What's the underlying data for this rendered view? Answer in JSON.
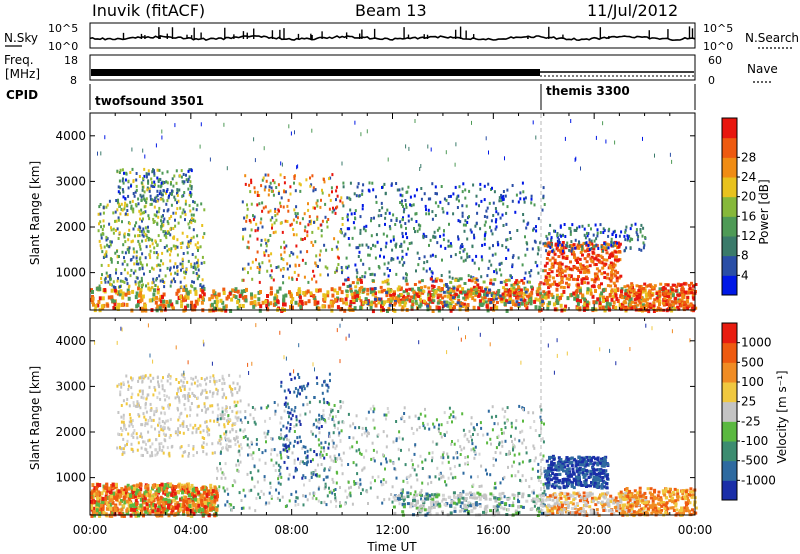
{
  "header": {
    "station": "Inuvik (fitACF)",
    "beam": "Beam 13",
    "date": "11/Jul/2012"
  },
  "nsky_panel": {
    "label": "N.Sky",
    "right_label": "N.Search",
    "yticks": [
      "10^5",
      "10^0"
    ],
    "right_yticks": [
      "10^5",
      "10^0"
    ]
  },
  "freq_panel": {
    "label_line1": "Freq.",
    "label_line2": "[MHz]",
    "yticks": [
      "18",
      "8"
    ],
    "right_label": "Nave",
    "right_yticks": [
      "60",
      "0"
    ]
  },
  "cpid_panel": {
    "label": "CPID",
    "modes": [
      {
        "name": "twofsound 3501",
        "start_hour": 0
      },
      {
        "name": "themis 3300",
        "start_hour": 18
      }
    ]
  },
  "chart_data": [
    {
      "type": "heatmap",
      "ylabel": "Slant Range [km]",
      "y_ticks": [
        "1000",
        "2000",
        "3000",
        "4000"
      ],
      "ylim": [
        180,
        4500
      ],
      "xlim": [
        0,
        24
      ],
      "x_ticks": [
        "00:00",
        "04:00",
        "08:00",
        "12:00",
        "16:00",
        "20:00",
        "00:00"
      ],
      "colorbar": {
        "label": "Power [dB]",
        "ticks": [
          "4",
          "8",
          "12",
          "16",
          "20",
          "24",
          "28"
        ],
        "colors": [
          "#0018e6",
          "#2a4ea6",
          "#3a7a6a",
          "#4e9a56",
          "#86b83a",
          "#e8c21e",
          "#f08c14",
          "#ee5a10",
          "#e8160e"
        ]
      }
    },
    {
      "type": "heatmap",
      "ylabel": "Slant Range [km]",
      "y_ticks": [
        "1000",
        "2000",
        "3000",
        "4000"
      ],
      "ylim": [
        180,
        4500
      ],
      "xlim": [
        0,
        24
      ],
      "x_ticks": [
        "00:00",
        "04:00",
        "08:00",
        "12:00",
        "16:00",
        "20:00",
        "00:00"
      ],
      "xlabel": "Time UT",
      "colorbar": {
        "label": "Velocity [m s⁻¹]",
        "ticks": [
          "1000",
          "500",
          "100",
          "25",
          "-25",
          "-100",
          "-500",
          "-1000"
        ],
        "colors": [
          "#1a2ea8",
          "#2e6aa0",
          "#3c8c70",
          "#5ab840",
          "#c4c4c4",
          "#f0c840",
          "#f08c24",
          "#ee5a10",
          "#e81c10"
        ]
      }
    }
  ]
}
